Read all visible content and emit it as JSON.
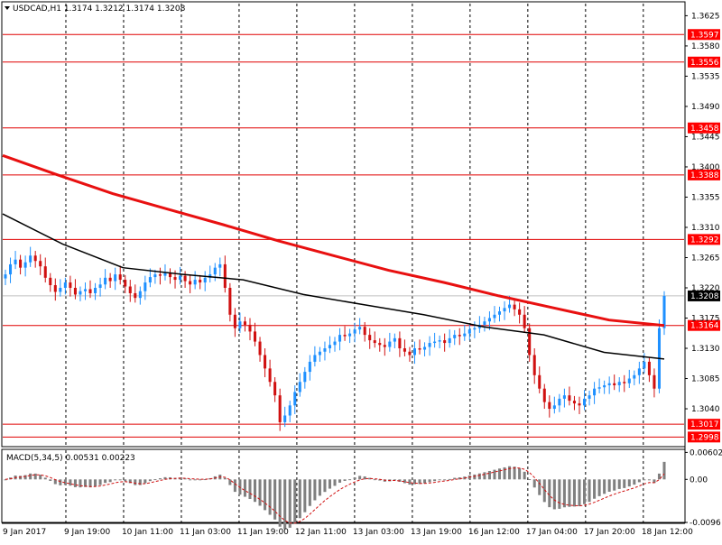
{
  "header": {
    "menu_icon": "triangle-down-icon",
    "symbol_info": "USDCAD,H1  1.3174 1.3212 1.3174 1.3208"
  },
  "macd_header": "MACD(5,34,5) 0.00531 0.00223",
  "colors": {
    "bull": "#1e90ff",
    "bear": "#d01010",
    "ma_slow": "#e81010",
    "ma_fast": "#000000",
    "level_line": "#e00000",
    "level_tag_bg": "#ff0000",
    "current_tag_bg": "#000000",
    "grid": "#000000",
    "macd_hist": "#808080",
    "macd_signal": "#d01010"
  },
  "chart_data": {
    "type": "candlestick",
    "symbol": "USDCAD",
    "timeframe": "H1",
    "ylim": [
      1.2985,
      1.3643
    ],
    "price_ticks": [
      "1.3625",
      "1.3580",
      "1.3535",
      "1.3490",
      "1.3445",
      "1.3400",
      "1.3355",
      "1.3310",
      "1.3265",
      "1.3220",
      "1.3175",
      "1.3130",
      "1.3085",
      "1.3040"
    ],
    "level_tags": [
      "1.3597",
      "1.3556",
      "1.3458",
      "1.3388",
      "1.3292",
      "1.3164",
      "1.3017",
      "1.2998"
    ],
    "current_price": "1.3208",
    "time_labels": [
      "9 Jan 2017",
      "9 Jan 19:00",
      "10 Jan 11:00",
      "11 Jan 03:00",
      "11 Jan 19:00",
      "12 Jan 11:00",
      "13 Jan 03:00",
      "13 Jan 19:00",
      "16 Jan 12:00",
      "17 Jan 04:00",
      "17 Jan 20:00",
      "18 Jan 12:00"
    ],
    "ma_slow": [
      1.3417,
      1.3388,
      1.336,
      1.3337,
      1.3314,
      1.329,
      1.3268,
      1.3246,
      1.3228,
      1.3208,
      1.319,
      1.3172,
      1.3164
    ],
    "ma_fast": [
      1.333,
      1.3285,
      1.325,
      1.324,
      1.3232,
      1.321,
      1.3195,
      1.318,
      1.3162,
      1.315,
      1.3124,
      1.3114
    ],
    "closes": [
      1.324,
      1.3255,
      1.3262,
      1.325,
      1.3258,
      1.3268,
      1.326,
      1.3252,
      1.3235,
      1.3224,
      1.3214,
      1.322,
      1.3228,
      1.322,
      1.321,
      1.3215,
      1.3218,
      1.3212,
      1.322,
      1.3225,
      1.3235,
      1.323,
      1.324,
      1.3232,
      1.3222,
      1.3212,
      1.3205,
      1.3215,
      1.3228,
      1.3236,
      1.324,
      1.3238,
      1.3242,
      1.3236,
      1.3232,
      1.3238,
      1.323,
      1.3225,
      1.3232,
      1.3228,
      1.3235,
      1.324,
      1.325,
      1.3255,
      1.322,
      1.318,
      1.316,
      1.317,
      1.3165,
      1.3155,
      1.314,
      1.312,
      1.31,
      1.308,
      1.306,
      1.302,
      1.303,
      1.3045,
      1.3065,
      1.308,
      1.3095,
      1.311,
      1.312,
      1.3125,
      1.313,
      1.3135,
      1.314,
      1.315,
      1.3148,
      1.3152,
      1.3158,
      1.3162,
      1.315,
      1.3142,
      1.3138,
      1.3135,
      1.3132,
      1.314,
      1.3145,
      1.313,
      1.3125,
      1.312,
      1.313,
      1.3128,
      1.3132,
      1.3138,
      1.314,
      1.3142,
      1.3138,
      1.3145,
      1.315,
      1.3148,
      1.3152,
      1.3158,
      1.316,
      1.3165,
      1.317,
      1.3175,
      1.318,
      1.3185,
      1.319,
      1.3195,
      1.3188,
      1.318,
      1.316,
      1.312,
      1.309,
      1.307,
      1.305,
      1.304,
      1.3045,
      1.3055,
      1.306,
      1.3052,
      1.3048,
      1.3045,
      1.3055,
      1.306,
      1.307,
      1.3072,
      1.3075,
      1.3078,
      1.3075,
      1.308,
      1.3078,
      1.3085,
      1.309,
      1.31,
      1.311,
      1.309,
      1.307,
      1.316,
      1.3208
    ],
    "macd_ylim": [
      -0.0096,
      0.0065
    ],
    "macd_ticks": [
      "0.00602",
      "0.00",
      "-0.0096"
    ]
  }
}
